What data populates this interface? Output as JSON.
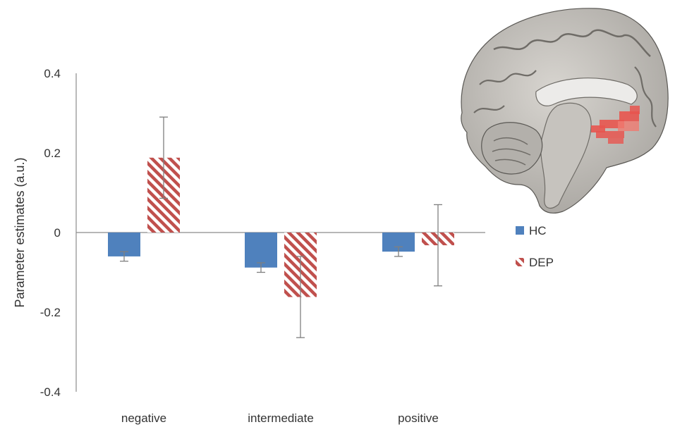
{
  "chart_data": {
    "type": "bar",
    "title": "",
    "xlabel": "",
    "ylabel": "Parameter estimates (a.u.)",
    "categories": [
      "negative",
      "intermediate",
      "positive"
    ],
    "ylim": [
      -0.4,
      0.4
    ],
    "yticks": [
      0.4,
      0.2,
      0,
      -0.2,
      -0.4
    ],
    "ytick_labels": [
      "0.4",
      "0.2",
      "0",
      "-0.2",
      "-0.4"
    ],
    "grid": false,
    "legend_position": "right",
    "series": [
      {
        "name": "HC",
        "color": "#4f81bd",
        "pattern": "solid",
        "values": [
          -0.06,
          -0.088,
          -0.048
        ],
        "errors": [
          0.012,
          0.012,
          0.012
        ]
      },
      {
        "name": "DEP",
        "color": "#c0504d",
        "pattern": "hatched",
        "values": [
          0.188,
          -0.162,
          -0.032
        ],
        "errors": [
          0.102,
          0.102,
          0.102
        ]
      }
    ]
  },
  "inset_image": {
    "icon": "sagittal-brain-mri-with-red-cluster",
    "brain_color": "#bdbab5",
    "highlight_color": "#e8554f"
  }
}
